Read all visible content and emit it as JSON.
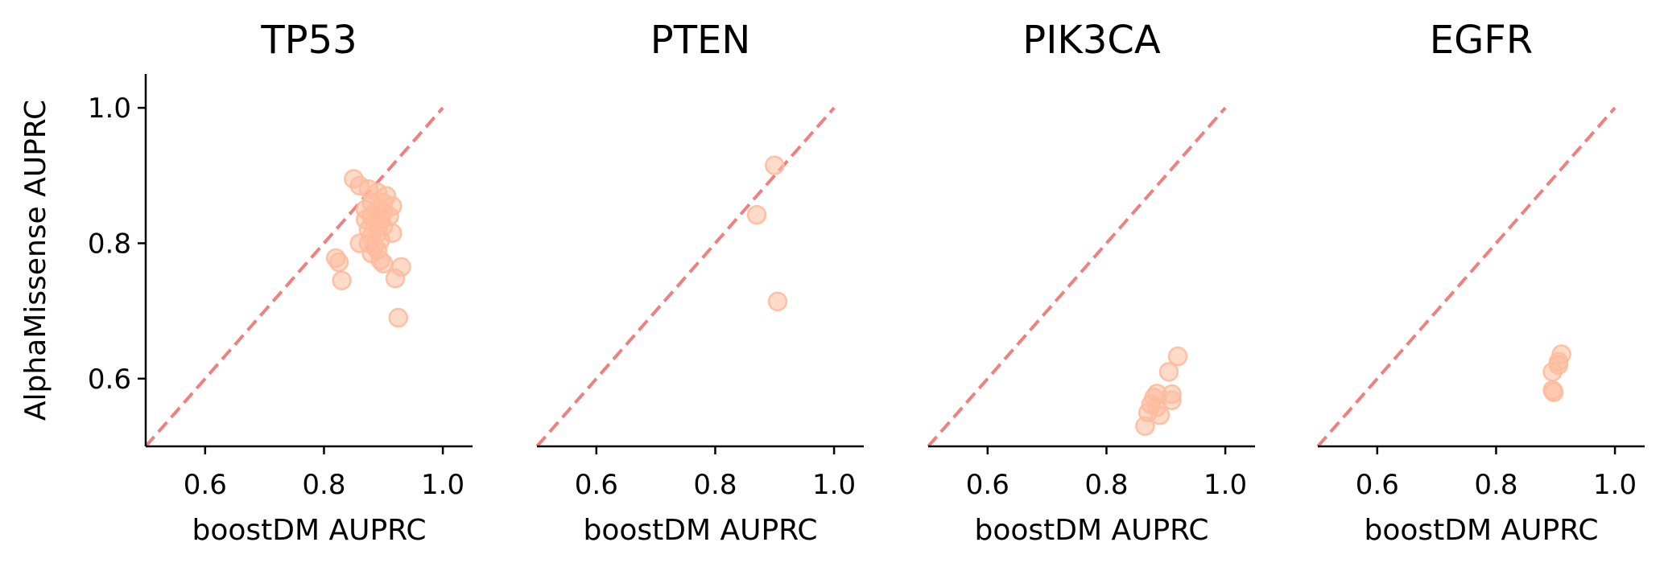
{
  "chart_data": [
    {
      "type": "scatter",
      "title": "TP53",
      "xlabel": "boostDM AUPRC",
      "ylabel": "AlphaMissense AUPRC",
      "xlim": [
        0.5,
        1.05
      ],
      "ylim": [
        0.5,
        1.05
      ],
      "xticks": [
        "0.6",
        "0.8",
        "1.0"
      ],
      "yticks": [
        "0.6",
        "0.8",
        "1.0"
      ],
      "reference_line": "y = x",
      "points": [
        {
          "x": 0.85,
          "y": 0.895
        },
        {
          "x": 0.86,
          "y": 0.885
        },
        {
          "x": 0.875,
          "y": 0.88
        },
        {
          "x": 0.89,
          "y": 0.875
        },
        {
          "x": 0.905,
          "y": 0.87
        },
        {
          "x": 0.9,
          "y": 0.86
        },
        {
          "x": 0.915,
          "y": 0.855
        },
        {
          "x": 0.88,
          "y": 0.86
        },
        {
          "x": 0.87,
          "y": 0.85
        },
        {
          "x": 0.89,
          "y": 0.85
        },
        {
          "x": 0.9,
          "y": 0.845
        },
        {
          "x": 0.91,
          "y": 0.84
        },
        {
          "x": 0.88,
          "y": 0.84
        },
        {
          "x": 0.87,
          "y": 0.835
        },
        {
          "x": 0.895,
          "y": 0.835
        },
        {
          "x": 0.885,
          "y": 0.83
        },
        {
          "x": 0.9,
          "y": 0.825
        },
        {
          "x": 0.875,
          "y": 0.82
        },
        {
          "x": 0.89,
          "y": 0.815
        },
        {
          "x": 0.915,
          "y": 0.815
        },
        {
          "x": 0.88,
          "y": 0.81
        },
        {
          "x": 0.895,
          "y": 0.805
        },
        {
          "x": 0.86,
          "y": 0.8
        },
        {
          "x": 0.875,
          "y": 0.8
        },
        {
          "x": 0.885,
          "y": 0.795
        },
        {
          "x": 0.89,
          "y": 0.79
        },
        {
          "x": 0.88,
          "y": 0.785
        },
        {
          "x": 0.895,
          "y": 0.775
        },
        {
          "x": 0.82,
          "y": 0.778
        },
        {
          "x": 0.825,
          "y": 0.772
        },
        {
          "x": 0.9,
          "y": 0.77
        },
        {
          "x": 0.93,
          "y": 0.765
        },
        {
          "x": 0.92,
          "y": 0.748
        },
        {
          "x": 0.83,
          "y": 0.745
        },
        {
          "x": 0.925,
          "y": 0.69
        }
      ]
    },
    {
      "type": "scatter",
      "title": "PTEN",
      "xlabel": "boostDM AUPRC",
      "ylabel": "",
      "xlim": [
        0.5,
        1.05
      ],
      "ylim": [
        0.5,
        1.05
      ],
      "xticks": [
        "0.6",
        "0.8",
        "1.0"
      ],
      "yticks": [],
      "reference_line": "y = x",
      "points": [
        {
          "x": 0.9,
          "y": 0.915
        },
        {
          "x": 0.87,
          "y": 0.842
        },
        {
          "x": 0.905,
          "y": 0.714
        }
      ]
    },
    {
      "type": "scatter",
      "title": "PIK3CA",
      "xlabel": "boostDM AUPRC",
      "ylabel": "",
      "xlim": [
        0.5,
        1.05
      ],
      "ylim": [
        0.5,
        1.05
      ],
      "xticks": [
        "0.6",
        "0.8",
        "1.0"
      ],
      "yticks": [],
      "reference_line": "y = x",
      "points": [
        {
          "x": 0.92,
          "y": 0.633
        },
        {
          "x": 0.905,
          "y": 0.61
        },
        {
          "x": 0.885,
          "y": 0.578
        },
        {
          "x": 0.91,
          "y": 0.577
        },
        {
          "x": 0.88,
          "y": 0.572
        },
        {
          "x": 0.91,
          "y": 0.568
        },
        {
          "x": 0.875,
          "y": 0.562
        },
        {
          "x": 0.885,
          "y": 0.558
        },
        {
          "x": 0.87,
          "y": 0.55
        },
        {
          "x": 0.89,
          "y": 0.546
        },
        {
          "x": 0.865,
          "y": 0.53
        }
      ]
    },
    {
      "type": "scatter",
      "title": "EGFR",
      "xlabel": "boostDM AUPRC",
      "ylabel": "",
      "xlim": [
        0.5,
        1.05
      ],
      "ylim": [
        0.5,
        1.05
      ],
      "xticks": [
        "0.6",
        "0.8",
        "1.0"
      ],
      "yticks": [],
      "reference_line": "y = x",
      "points": [
        {
          "x": 0.91,
          "y": 0.636
        },
        {
          "x": 0.905,
          "y": 0.625
        },
        {
          "x": 0.905,
          "y": 0.62
        },
        {
          "x": 0.895,
          "y": 0.61
        },
        {
          "x": 0.895,
          "y": 0.583
        },
        {
          "x": 0.897,
          "y": 0.58
        }
      ]
    }
  ],
  "colors": {
    "points": "#fdbb9d",
    "reference_line": "#f08080",
    "axis": "#000000"
  }
}
